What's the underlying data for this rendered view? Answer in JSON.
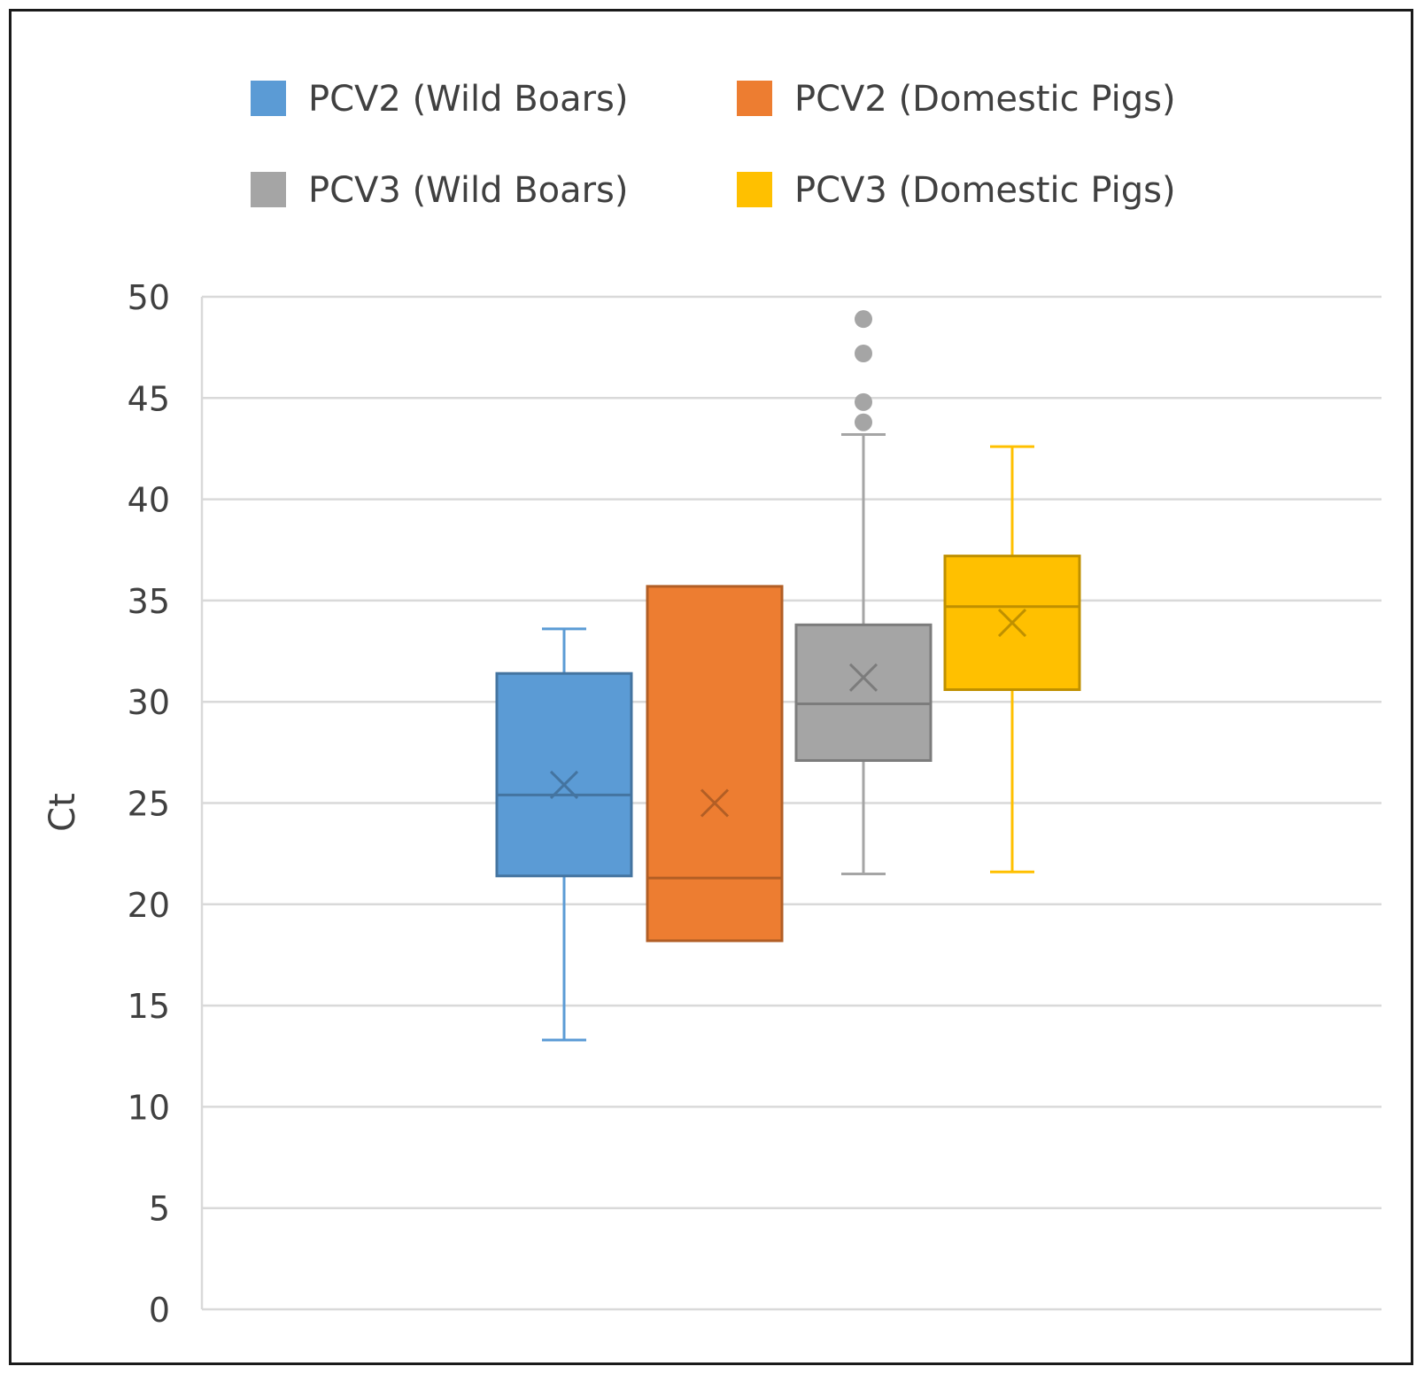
{
  "chart_data": {
    "type": "box",
    "title": "",
    "xlabel": "",
    "ylabel": "Ct",
    "ylim": [
      0,
      50
    ],
    "yticks": [
      0,
      5,
      10,
      15,
      20,
      25,
      30,
      35,
      40,
      45,
      50
    ],
    "grid": true,
    "legend_position": "top",
    "series": [
      {
        "name": "PCV2 (Wild Boars)",
        "color": "#5b9bd5",
        "min": 13.3,
        "q1": 21.4,
        "median": 25.4,
        "q3": 31.4,
        "max": 33.6,
        "mean": 25.9,
        "outliers": []
      },
      {
        "name": "PCV2 (Domestic Pigs)",
        "color": "#ed7d31",
        "min": 18.2,
        "q1": 18.2,
        "median": 21.3,
        "q3": 35.7,
        "max": 35.7,
        "mean": 25.0,
        "outliers": []
      },
      {
        "name": "PCV3 (Wild Boars)",
        "color": "#a5a5a5",
        "min": 21.5,
        "q1": 27.1,
        "median": 29.9,
        "q3": 33.8,
        "max": 43.2,
        "mean": 31.2,
        "outliers": [
          48.9,
          47.2,
          44.8,
          43.8
        ]
      },
      {
        "name": "PCV3 (Domestic Pigs)",
        "color": "#ffc000",
        "min": 21.6,
        "q1": 30.6,
        "median": 34.7,
        "q3": 37.2,
        "max": 42.6,
        "mean": 33.9,
        "outliers": []
      }
    ]
  },
  "colors": {
    "grid": "#d9d9d9",
    "text": "#404040",
    "frame": "#1a1a1a"
  }
}
